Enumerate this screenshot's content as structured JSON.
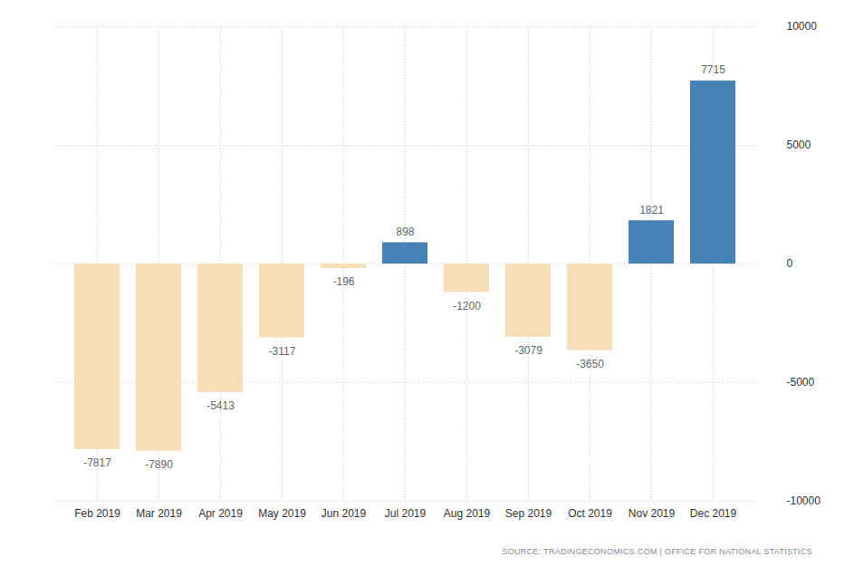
{
  "chart_data": {
    "type": "bar",
    "categories": [
      "Feb 2019",
      "Mar 2019",
      "Apr 2019",
      "May 2019",
      "Jun 2019",
      "Jul 2019",
      "Aug 2019",
      "Sep 2019",
      "Oct 2019",
      "Nov 2019",
      "Dec 2019"
    ],
    "values": [
      -7817,
      -7890,
      -5413,
      -3117,
      -196,
      898,
      -1200,
      -3079,
      -3650,
      1821,
      7715
    ],
    "colors": [
      "#f7deb6",
      "#f7deb6",
      "#f7deb6",
      "#f7deb6",
      "#f7deb6",
      "#4682b4",
      "#f7deb6",
      "#f7deb6",
      "#f7deb6",
      "#4682b4",
      "#4682b4"
    ],
    "ylim": [
      -10000,
      10000
    ],
    "yticks": [
      -10000,
      -5000,
      0,
      5000,
      10000
    ],
    "grid": true,
    "data_labels": true,
    "caption": "SOURCE: TRADINGECONOMICS.COM | OFFICE FOR NATIONAL STATISTICS"
  }
}
